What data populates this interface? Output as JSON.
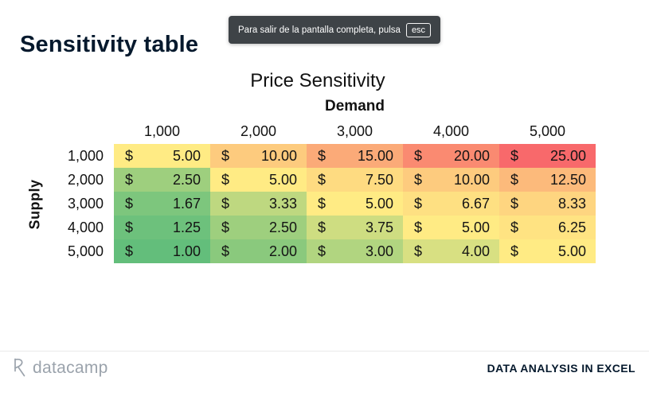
{
  "page": {
    "title": "Sensitivity table"
  },
  "toast": {
    "message": "Para salir de la pantalla completa, pulsa",
    "key": "esc",
    "bg": "#3E4347"
  },
  "table": {
    "title": "Price Sensitivity",
    "col_group_label": "Demand",
    "row_group_label": "Supply",
    "currency": "$",
    "col_headers": [
      "1,000",
      "2,000",
      "3,000",
      "4,000",
      "5,000"
    ],
    "row_headers": [
      "1,000",
      "2,000",
      "3,000",
      "4,000",
      "5,000"
    ],
    "rows": [
      [
        {
          "value": "5.00",
          "bg": "#FFEB84"
        },
        {
          "value": "10.00",
          "bg": "#FDCB7E"
        },
        {
          "value": "15.00",
          "bg": "#FBAA78"
        },
        {
          "value": "20.00",
          "bg": "#FA8A71"
        },
        {
          "value": "25.00",
          "bg": "#F8696B"
        }
      ],
      [
        {
          "value": "2.50",
          "bg": "#9ECF7E"
        },
        {
          "value": "5.00",
          "bg": "#FFEB84"
        },
        {
          "value": "7.50",
          "bg": "#FEDB81"
        },
        {
          "value": "10.00",
          "bg": "#FDCB7E"
        },
        {
          "value": "12.50",
          "bg": "#FCBA7B"
        }
      ],
      [
        {
          "value": "1.67",
          "bg": "#7DC67D"
        },
        {
          "value": "3.33",
          "bg": "#BED880"
        },
        {
          "value": "5.00",
          "bg": "#FFEB84"
        },
        {
          "value": "6.67",
          "bg": "#FEE082"
        },
        {
          "value": "8.33",
          "bg": "#FED580"
        }
      ],
      [
        {
          "value": "1.25",
          "bg": "#6DC17C"
        },
        {
          "value": "2.50",
          "bg": "#9ECF7E"
        },
        {
          "value": "3.75",
          "bg": "#CEDD81"
        },
        {
          "value": "5.00",
          "bg": "#FFEB84"
        },
        {
          "value": "6.25",
          "bg": "#FFE382"
        }
      ],
      [
        {
          "value": "1.00",
          "bg": "#63BE7B"
        },
        {
          "value": "2.00",
          "bg": "#8AC97D"
        },
        {
          "value": "3.00",
          "bg": "#B1D580"
        },
        {
          "value": "4.00",
          "bg": "#D8E082"
        },
        {
          "value": "5.00",
          "bg": "#FFEB84"
        }
      ]
    ]
  },
  "footer": {
    "brand": "datacamp",
    "course": "DATA ANALYSIS IN EXCEL"
  },
  "colors": {
    "accent_navy": "#05192D",
    "toast_bg": "#3E4347",
    "divider": "#E9E9E9",
    "brand_gray": "#9BA3AC"
  },
  "chart_data": {
    "type": "heatmap",
    "title": "Price Sensitivity",
    "x_axis_label": "Demand",
    "y_axis_label": "Supply",
    "x_categories": [
      1000,
      2000,
      3000,
      4000,
      5000
    ],
    "y_categories": [
      1000,
      2000,
      3000,
      4000,
      5000
    ],
    "values": [
      [
        5.0,
        10.0,
        15.0,
        20.0,
        25.0
      ],
      [
        2.5,
        5.0,
        7.5,
        10.0,
        12.5
      ],
      [
        1.67,
        3.33,
        5.0,
        6.67,
        8.33
      ],
      [
        1.25,
        2.5,
        3.75,
        5.0,
        6.25
      ],
      [
        1.0,
        2.0,
        3.0,
        4.0,
        5.0
      ]
    ],
    "value_format": "$ 0.00",
    "color_scale": {
      "min": {
        "value": 1.0,
        "color": "#63BE7B"
      },
      "mid": {
        "value": 5.0,
        "color": "#FFEB84"
      },
      "max": {
        "value": 25.0,
        "color": "#F8696B"
      }
    },
    "grid": false,
    "legend": false
  }
}
